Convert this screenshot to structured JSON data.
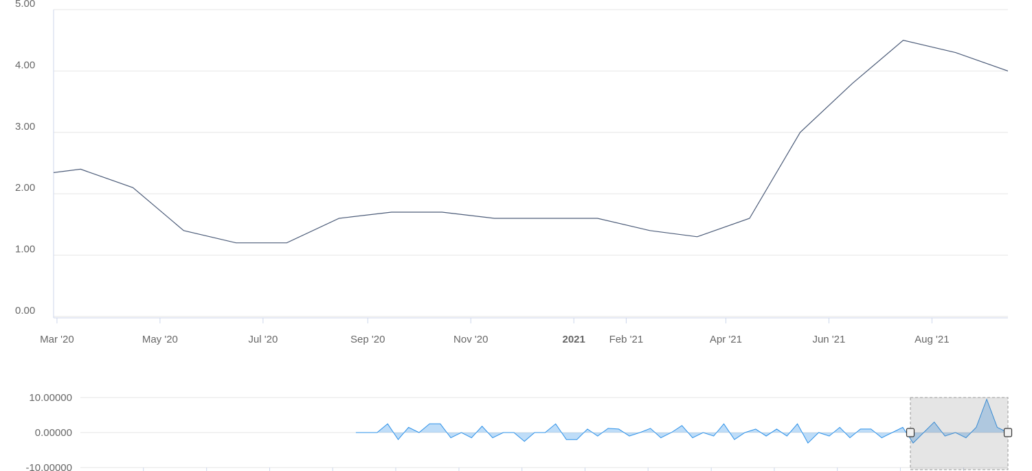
{
  "chart_data": [
    {
      "type": "line",
      "x": [
        "2020-02",
        "2020-03",
        "2020-04",
        "2020-05",
        "2020-06",
        "2020-07",
        "2020-08",
        "2020-09",
        "2020-10",
        "2020-11",
        "2020-12",
        "2021-01",
        "2021-02",
        "2021-03",
        "2021-04",
        "2021-05",
        "2021-06",
        "2021-07",
        "2021-08",
        "2021-09"
      ],
      "series": [
        {
          "color": "#4b5b78",
          "values": [
            2.3,
            2.4,
            2.1,
            1.4,
            1.2,
            1.2,
            1.6,
            1.7,
            1.7,
            1.6,
            1.6,
            1.6,
            1.4,
            1.3,
            1.6,
            3.0,
            3.8,
            4.5,
            4.3,
            4.0
          ]
        }
      ],
      "xlim": [
        "2020-02-28",
        "2021-09-15"
      ],
      "xticks": [
        {
          "value": "2020-03",
          "label": "Mar '20"
        },
        {
          "value": "2020-05",
          "label": "May '20"
        },
        {
          "value": "2020-07",
          "label": "Jul '20"
        },
        {
          "value": "2020-09",
          "label": "Sep '20"
        },
        {
          "value": "2020-11",
          "label": "Nov '20"
        },
        {
          "value": "2021-01",
          "label": "2021"
        },
        {
          "value": "2021-02",
          "label": "Feb '21"
        },
        {
          "value": "2021-04",
          "label": "Apr '21"
        },
        {
          "value": "2021-06",
          "label": "Jun '21"
        },
        {
          "value": "2021-08",
          "label": "Aug '21"
        }
      ],
      "ylim": [
        0,
        5
      ],
      "yticks": [
        {
          "value": 0,
          "label": "0.00"
        },
        {
          "value": 1,
          "label": "1.00"
        },
        {
          "value": 2,
          "label": "2.00"
        },
        {
          "value": 3,
          "label": "3.00"
        },
        {
          "value": 4,
          "label": "4.00"
        },
        {
          "value": 5,
          "label": "5.00"
        }
      ],
      "grid": true
    },
    {
      "type": "area",
      "x": [
        "2011-05",
        "2011-07",
        "2011-09",
        "2011-11",
        "2012-01",
        "2012-03",
        "2012-05",
        "2012-07",
        "2012-09",
        "2012-11",
        "2013-01",
        "2013-03",
        "2013-05",
        "2013-07",
        "2013-09",
        "2013-11",
        "2014-01",
        "2014-03",
        "2014-05",
        "2014-07",
        "2014-09",
        "2014-11",
        "2015-01",
        "2015-03",
        "2015-05",
        "2015-07",
        "2015-09",
        "2015-11",
        "2016-01",
        "2016-03",
        "2016-05",
        "2016-07",
        "2016-09",
        "2016-11",
        "2017-01",
        "2017-03",
        "2017-05",
        "2017-07",
        "2017-09",
        "2017-11",
        "2018-01",
        "2018-03",
        "2018-05",
        "2018-07",
        "2018-09",
        "2018-11",
        "2019-01",
        "2019-03",
        "2019-05",
        "2019-07",
        "2019-09",
        "2019-11",
        "2020-01",
        "2020-03",
        "2020-05",
        "2020-07",
        "2020-09",
        "2020-11",
        "2021-01",
        "2021-03",
        "2021-05",
        "2021-07",
        "2021-09"
      ],
      "series": [
        {
          "color": "#2b90e8",
          "values": [
            0,
            0,
            0,
            2.5,
            -2,
            1.5,
            0,
            2.5,
            2.5,
            -1.5,
            0,
            -1.5,
            1.8,
            -1.5,
            0,
            0,
            -2.5,
            0,
            0,
            2.5,
            -2,
            -2,
            1,
            -1,
            1.2,
            1,
            -1,
            0,
            1.2,
            -1.5,
            0,
            2,
            -1.5,
            0,
            -1,
            2.5,
            -2,
            0,
            1,
            -1,
            1,
            -1,
            2.5,
            -3,
            0,
            -1,
            1.5,
            -1.5,
            1,
            1,
            -1.5,
            0,
            1.5,
            -3,
            0,
            3,
            -1,
            0,
            -1.5,
            1.5,
            9.5,
            1.5,
            0
          ]
        }
      ],
      "xlim": [
        "2007-01-01",
        "2021-09-15"
      ],
      "xticks": [
        "2008-01",
        "2009-01",
        "2010-01",
        "2011-01",
        "2012-01",
        "2013-01",
        "2014-01",
        "2015-01",
        "2016-01",
        "2017-01",
        "2018-01",
        "2019-01",
        "2020-01",
        "2021-01"
      ],
      "ylim": [
        -10,
        10
      ],
      "yticks": [
        {
          "value": 10,
          "label": "10.00000"
        },
        {
          "value": 0,
          "label": "0.00000"
        },
        {
          "value": -10,
          "label": "-10.00000"
        }
      ],
      "grid": true
    }
  ]
}
